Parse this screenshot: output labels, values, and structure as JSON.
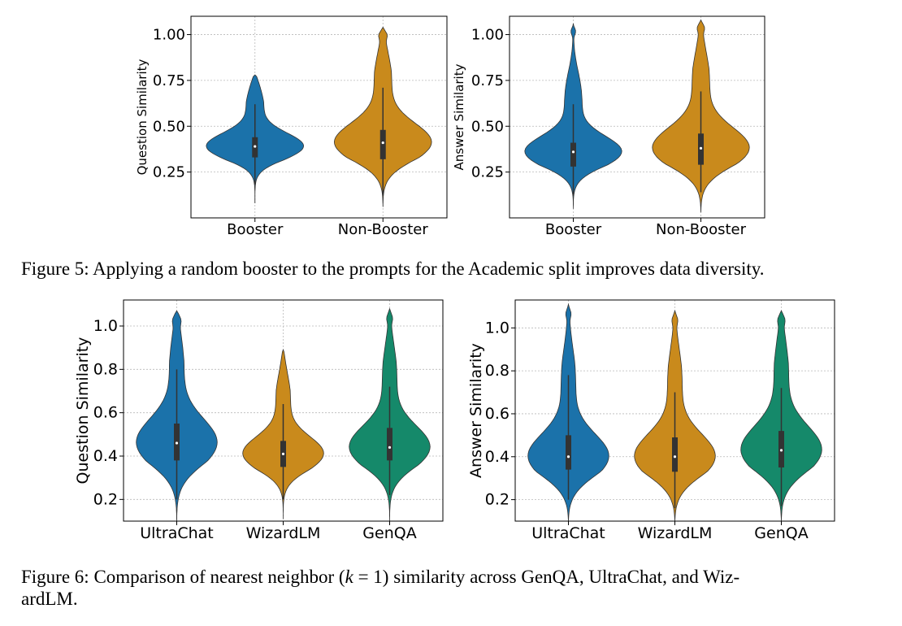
{
  "captions": {
    "fig5": "Figure 5: Applying a random booster to the prompts for the Academic split improves data diversity.",
    "fig6_line1": "Figure 6: Comparison of nearest neighbor (k = 1) similarity across GenQA, UltraChat, and Wiz-",
    "fig6_line2": "ardLM."
  },
  "chart_data": [
    {
      "type": "violin",
      "figure": "Figure 5",
      "ylabel": "Question Similarity",
      "yticks": [
        "0.25",
        "0.50",
        "0.75",
        "1.00"
      ],
      "ylim": [
        0.0,
        1.1
      ],
      "grid": true,
      "categories": [
        "Booster",
        "Non-Booster"
      ],
      "series": [
        {
          "category": "Booster",
          "color": "#1b72aa",
          "min": 0.08,
          "max": 0.78,
          "q1": 0.33,
          "median": 0.39,
          "q3": 0.44,
          "whisker_low": 0.18,
          "whisker_high": 0.62
        },
        {
          "category": "Non-Booster",
          "color": "#c98a1c",
          "min": 0.06,
          "max": 1.04,
          "q1": 0.32,
          "median": 0.41,
          "q3": 0.48,
          "whisker_low": 0.12,
          "whisker_high": 0.71
        }
      ]
    },
    {
      "type": "violin",
      "figure": "Figure 5",
      "ylabel": "Answer Similarity",
      "yticks": [
        "0.25",
        "0.50",
        "0.75",
        "1.00"
      ],
      "ylim": [
        0.0,
        1.1
      ],
      "grid": true,
      "categories": [
        "Booster",
        "Non-Booster"
      ],
      "series": [
        {
          "category": "Booster",
          "color": "#1b72aa",
          "min": 0.05,
          "max": 1.06,
          "q1": 0.28,
          "median": 0.36,
          "q3": 0.41,
          "whisker_low": 0.12,
          "whisker_high": 0.62
        },
        {
          "category": "Non-Booster",
          "color": "#c98a1c",
          "min": 0.03,
          "max": 1.08,
          "q1": 0.29,
          "median": 0.38,
          "q3": 0.46,
          "whisker_low": 0.14,
          "whisker_high": 0.69
        }
      ]
    },
    {
      "type": "violin",
      "figure": "Figure 6",
      "ylabel": "Question Similarity",
      "yticks": [
        "0.2",
        "0.4",
        "0.6",
        "0.8",
        "1.0"
      ],
      "ylim": [
        0.1,
        1.12
      ],
      "grid": true,
      "categories": [
        "UltraChat",
        "WizardLM",
        "GenQA"
      ],
      "series": [
        {
          "category": "UltraChat",
          "color": "#1b72aa",
          "min": 0.1,
          "max": 1.07,
          "q1": 0.38,
          "median": 0.46,
          "q3": 0.55,
          "whisker_low": 0.2,
          "whisker_high": 0.8
        },
        {
          "category": "WizardLM",
          "color": "#c98a1c",
          "min": 0.11,
          "max": 0.89,
          "q1": 0.35,
          "median": 0.41,
          "q3": 0.47,
          "whisker_low": 0.2,
          "whisker_high": 0.64
        },
        {
          "category": "GenQA",
          "color": "#15896a",
          "min": 0.1,
          "max": 1.08,
          "q1": 0.38,
          "median": 0.44,
          "q3": 0.53,
          "whisker_low": 0.22,
          "whisker_high": 0.72
        }
      ]
    },
    {
      "type": "violin",
      "figure": "Figure 6",
      "ylabel": "Answer Similarity",
      "yticks": [
        "0.2",
        "0.4",
        "0.6",
        "0.8",
        "1.0"
      ],
      "ylim": [
        0.1,
        1.13
      ],
      "grid": true,
      "categories": [
        "UltraChat",
        "WizardLM",
        "GenQA"
      ],
      "series": [
        {
          "category": "UltraChat",
          "color": "#1b72aa",
          "min": 0.1,
          "max": 1.11,
          "q1": 0.34,
          "median": 0.4,
          "q3": 0.5,
          "whisker_low": 0.2,
          "whisker_high": 0.78
        },
        {
          "category": "WizardLM",
          "color": "#c98a1c",
          "min": 0.1,
          "max": 1.08,
          "q1": 0.33,
          "median": 0.4,
          "q3": 0.49,
          "whisker_low": 0.16,
          "whisker_high": 0.7
        },
        {
          "category": "GenQA",
          "color": "#15896a",
          "min": 0.1,
          "max": 1.08,
          "q1": 0.35,
          "median": 0.43,
          "q3": 0.52,
          "whisker_low": 0.17,
          "whisker_high": 0.72
        }
      ]
    }
  ]
}
